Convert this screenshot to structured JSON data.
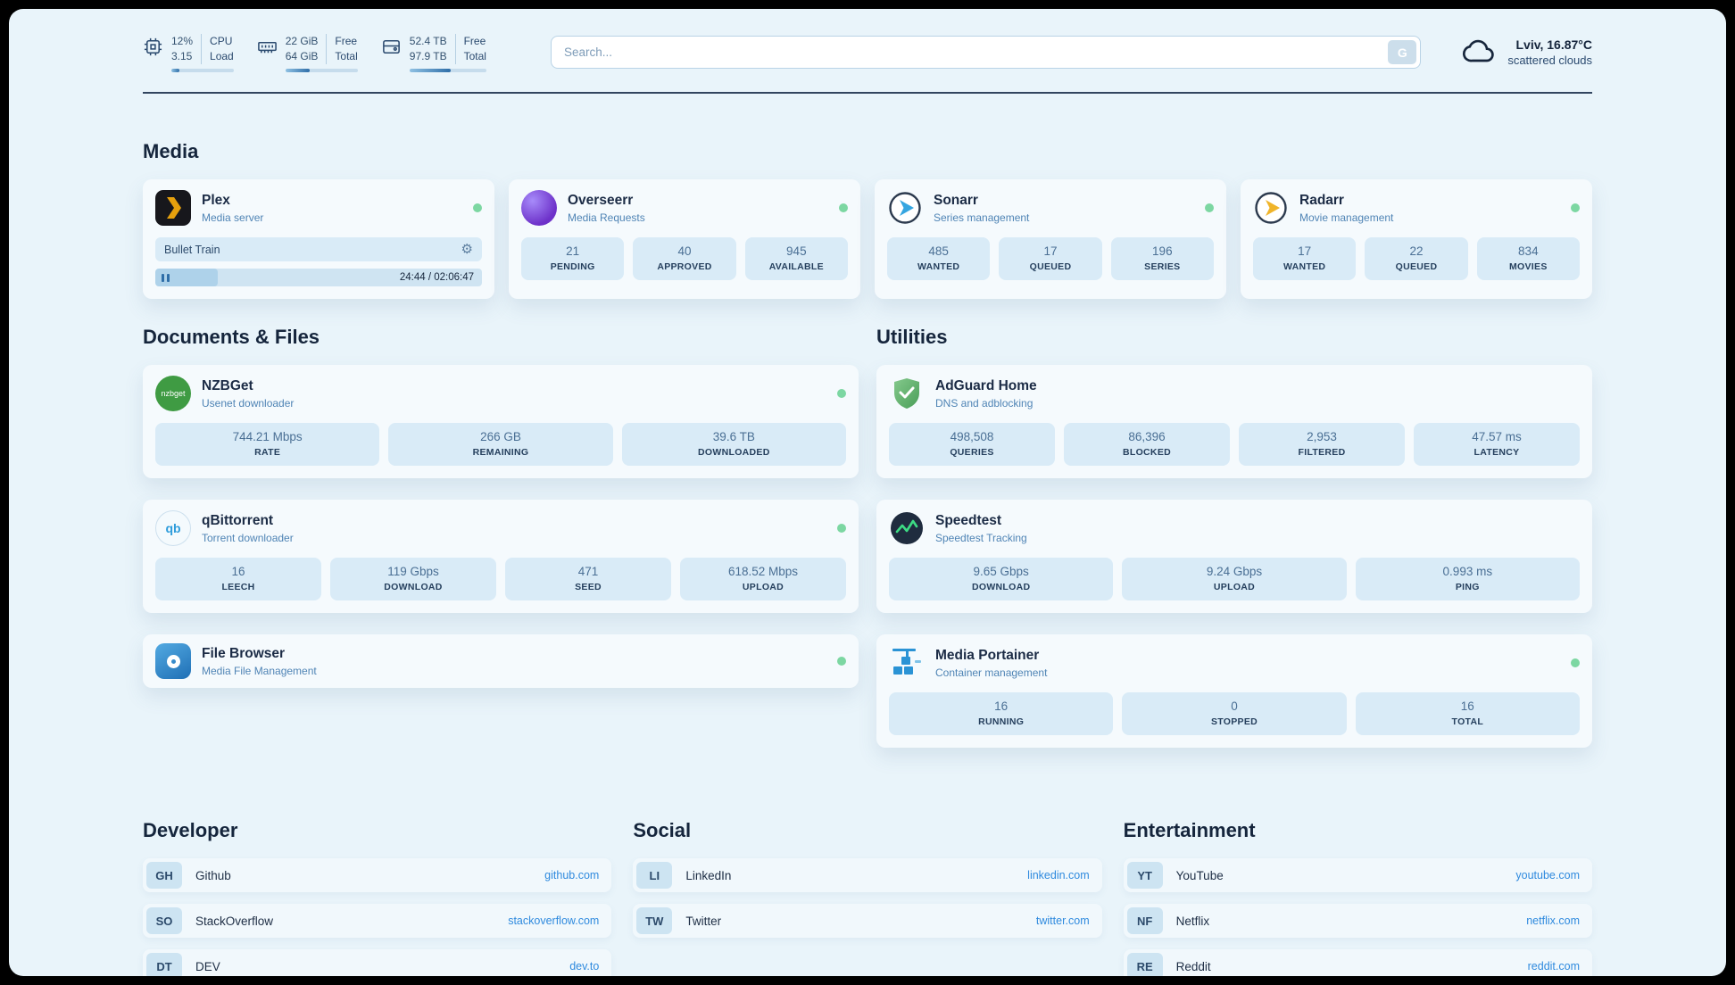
{
  "icons": {
    "gear": "⚙",
    "nzbget_label": "nzbget",
    "qb_label": "qb"
  },
  "topbar": {
    "cpu": {
      "percent": "12%",
      "load": "3.15",
      "label_top": "CPU",
      "label_bottom": "Load",
      "progress": 13
    },
    "ram": {
      "free": "22 GiB",
      "total": "64 GiB",
      "label_top": "Free",
      "label_bottom": "Total",
      "progress": 34
    },
    "disk": {
      "free": "52.4 TB",
      "total": "97.9 TB",
      "label_top": "Free",
      "label_bottom": "Total",
      "progress": 54
    },
    "search": {
      "placeholder": "Search...",
      "button_label": "G"
    },
    "weather": {
      "location": "Lviv, 16.87°C",
      "condition": "scattered clouds"
    }
  },
  "media": {
    "title": "Media",
    "plex": {
      "title": "Plex",
      "subtitle": "Media server",
      "now_playing": "Bullet Train",
      "time": "24:44 / 02:06:47",
      "progress": 19
    },
    "overseerr": {
      "title": "Overseerr",
      "subtitle": "Media Requests",
      "stats": [
        {
          "value": "21",
          "label": "PENDING"
        },
        {
          "value": "40",
          "label": "APPROVED"
        },
        {
          "value": "945",
          "label": "AVAILABLE"
        }
      ]
    },
    "sonarr": {
      "title": "Sonarr",
      "subtitle": "Series management",
      "stats": [
        {
          "value": "485",
          "label": "WANTED"
        },
        {
          "value": "17",
          "label": "QUEUED"
        },
        {
          "value": "196",
          "label": "SERIES"
        }
      ]
    },
    "radarr": {
      "title": "Radarr",
      "subtitle": "Movie management",
      "stats": [
        {
          "value": "17",
          "label": "WANTED"
        },
        {
          "value": "22",
          "label": "QUEUED"
        },
        {
          "value": "834",
          "label": "MOVIES"
        }
      ]
    }
  },
  "documents": {
    "title": "Documents & Files",
    "nzbget": {
      "title": "NZBGet",
      "subtitle": "Usenet downloader",
      "stats": [
        {
          "value": "744.21 Mbps",
          "label": "RATE"
        },
        {
          "value": "266 GB",
          "label": "REMAINING"
        },
        {
          "value": "39.6 TB",
          "label": "DOWNLOADED"
        }
      ]
    },
    "qbittorrent": {
      "title": "qBittorrent",
      "subtitle": "Torrent downloader",
      "stats": [
        {
          "value": "16",
          "label": "LEECH"
        },
        {
          "value": "119 Gbps",
          "label": "DOWNLOAD"
        },
        {
          "value": "471",
          "label": "SEED"
        },
        {
          "value": "618.52 Mbps",
          "label": "UPLOAD"
        }
      ]
    },
    "filebrowser": {
      "title": "File Browser",
      "subtitle": "Media File Management"
    }
  },
  "utilities": {
    "title": "Utilities",
    "adguard": {
      "title": "AdGuard Home",
      "subtitle": "DNS and adblocking",
      "stats": [
        {
          "value": "498,508",
          "label": "QUERIES"
        },
        {
          "value": "86,396",
          "label": "BLOCKED"
        },
        {
          "value": "2,953",
          "label": "FILTERED"
        },
        {
          "value": "47.57 ms",
          "label": "LATENCY"
        }
      ]
    },
    "speedtest": {
      "title": "Speedtest",
      "subtitle": "Speedtest Tracking",
      "stats": [
        {
          "value": "9.65 Gbps",
          "label": "DOWNLOAD"
        },
        {
          "value": "9.24 Gbps",
          "label": "UPLOAD"
        },
        {
          "value": "0.993 ms",
          "label": "PING"
        }
      ]
    },
    "portainer": {
      "title": "Media Portainer",
      "subtitle": "Container management",
      "stats": [
        {
          "value": "16",
          "label": "RUNNING"
        },
        {
          "value": "0",
          "label": "STOPPED"
        },
        {
          "value": "16",
          "label": "TOTAL"
        }
      ]
    }
  },
  "link_sections": {
    "developer": {
      "title": "Developer",
      "links": [
        {
          "badge": "GH",
          "name": "Github",
          "url": "github.com"
        },
        {
          "badge": "SO",
          "name": "StackOverflow",
          "url": "stackoverflow.com"
        },
        {
          "badge": "DT",
          "name": "DEV",
          "url": "dev.to"
        }
      ]
    },
    "social": {
      "title": "Social",
      "links": [
        {
          "badge": "LI",
          "name": "LinkedIn",
          "url": "linkedin.com"
        },
        {
          "badge": "TW",
          "name": "Twitter",
          "url": "twitter.com"
        }
      ]
    },
    "entertainment": {
      "title": "Entertainment",
      "links": [
        {
          "badge": "YT",
          "name": "YouTube",
          "url": "youtube.com"
        },
        {
          "badge": "NF",
          "name": "Netflix",
          "url": "netflix.com"
        },
        {
          "badge": "RE",
          "name": "Reddit",
          "url": "reddit.com"
        }
      ]
    }
  }
}
